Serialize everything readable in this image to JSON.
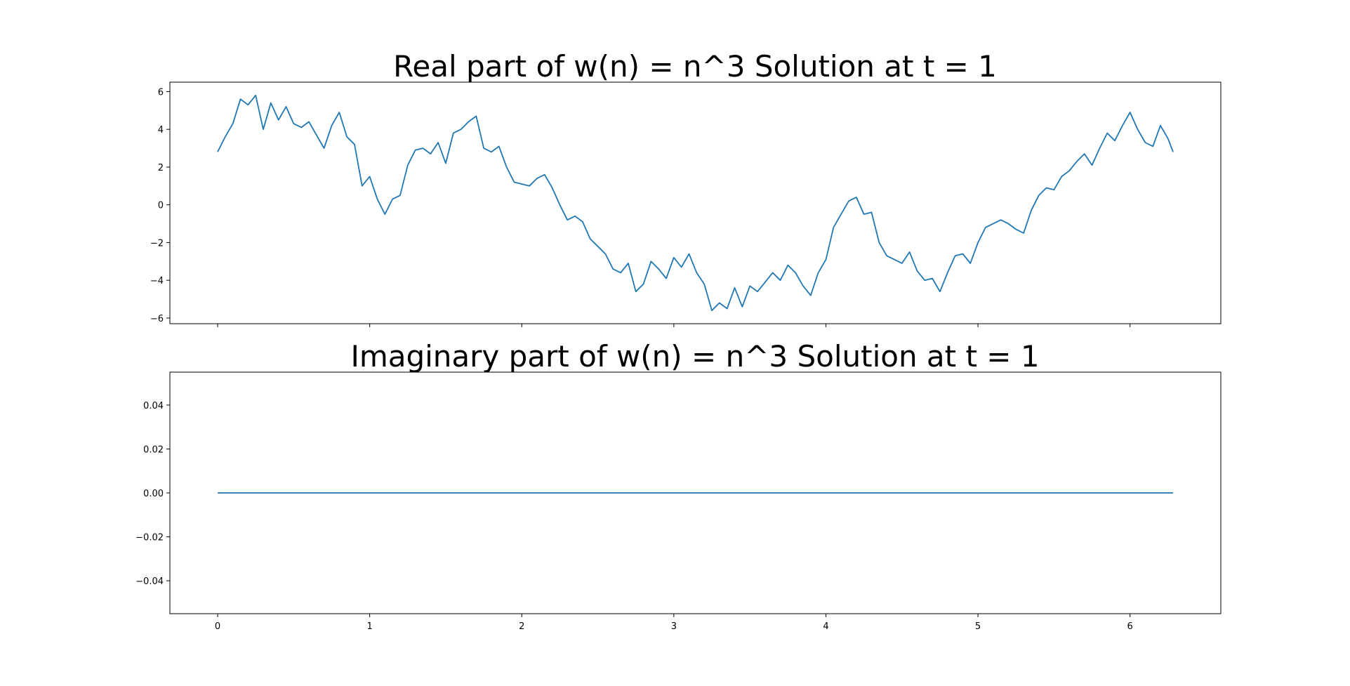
{
  "chart_data": [
    {
      "type": "line",
      "title": "Real part of w(n) = n^3 Solution at t = 1",
      "xlabel": "",
      "ylabel": "",
      "xlim": [
        -0.314,
        6.597
      ],
      "ylim": [
        -6.3,
        6.5
      ],
      "xticks": [
        0,
        1,
        2,
        3,
        4,
        5,
        6
      ],
      "xtick_labels_visible": false,
      "yticks": [
        -6,
        -4,
        -2,
        0,
        2,
        4,
        6
      ],
      "ytick_labels": [
        "−6",
        "−4",
        "−2",
        "0",
        "2",
        "4",
        "6"
      ],
      "grid": false,
      "color": "#1f77b4",
      "series": [
        {
          "x": [
            0,
            0.05,
            0.1,
            0.15,
            0.2,
            0.25,
            0.3,
            0.35,
            0.4,
            0.45,
            0.5,
            0.55,
            0.6,
            0.65,
            0.7,
            0.75,
            0.8,
            0.85,
            0.9,
            0.95,
            1.0,
            1.05,
            1.1,
            1.15,
            1.2,
            1.25,
            1.3,
            1.35,
            1.4,
            1.45,
            1.5,
            1.55,
            1.6,
            1.65,
            1.7,
            1.75,
            1.8,
            1.85,
            1.9,
            1.95,
            2.0,
            2.05,
            2.1,
            2.15,
            2.2,
            2.25,
            2.3,
            2.35,
            2.4,
            2.45,
            2.5,
            2.55,
            2.6,
            2.65,
            2.7,
            2.75,
            2.8,
            2.85,
            2.9,
            2.95,
            3.0,
            3.05,
            3.1,
            3.15,
            3.2,
            3.25,
            3.3,
            3.35,
            3.4,
            3.45,
            3.5,
            3.55,
            3.6,
            3.65,
            3.7,
            3.75,
            3.8,
            3.85,
            3.9,
            3.95,
            4.0,
            4.05,
            4.1,
            4.15,
            4.2,
            4.25,
            4.3,
            4.35,
            4.4,
            4.45,
            4.5,
            4.55,
            4.6,
            4.65,
            4.7,
            4.75,
            4.8,
            4.85,
            4.9,
            4.95,
            5.0,
            5.05,
            5.1,
            5.15,
            5.2,
            5.25,
            5.3,
            5.35,
            5.4,
            5.45,
            5.5,
            5.55,
            5.6,
            5.65,
            5.7,
            5.75,
            5.8,
            5.85,
            5.9,
            5.95,
            6.0,
            6.05,
            6.1,
            6.15,
            6.2,
            6.25,
            6.283
          ],
          "y": [
            2.8,
            3.6,
            4.3,
            5.6,
            5.3,
            5.8,
            4.0,
            5.4,
            4.5,
            5.2,
            4.3,
            4.1,
            4.4,
            3.7,
            3.0,
            4.2,
            4.9,
            3.6,
            3.2,
            1.0,
            1.5,
            0.3,
            -0.5,
            0.3,
            0.5,
            2.1,
            2.9,
            3.0,
            2.7,
            3.3,
            2.2,
            3.8,
            4.0,
            4.4,
            4.7,
            3.0,
            2.8,
            3.1,
            2.0,
            1.2,
            1.1,
            1.0,
            1.4,
            1.6,
            0.9,
            0.0,
            -0.8,
            -0.6,
            -0.9,
            -1.8,
            -2.2,
            -2.6,
            -3.4,
            -3.6,
            -3.1,
            -4.6,
            -4.2,
            -3.0,
            -3.4,
            -3.9,
            -2.8,
            -3.3,
            -2.6,
            -3.6,
            -4.2,
            -5.6,
            -5.2,
            -5.5,
            -4.4,
            -5.4,
            -4.3,
            -4.6,
            -4.1,
            -3.6,
            -4.0,
            -3.2,
            -3.6,
            -4.3,
            -4.8,
            -3.6,
            -2.9,
            -1.2,
            -0.5,
            0.2,
            0.4,
            -0.5,
            -0.4,
            -2.0,
            -2.7,
            -2.9,
            -3.1,
            -2.5,
            -3.5,
            -4.0,
            -3.9,
            -4.6,
            -3.6,
            -2.7,
            -2.6,
            -3.1,
            -2.0,
            -1.2,
            -1.0,
            -0.8,
            -1.0,
            -1.3,
            -1.5,
            -0.3,
            0.5,
            0.9,
            0.8,
            1.5,
            1.8,
            2.3,
            2.7,
            2.1,
            3.0,
            3.8,
            3.4,
            4.2,
            4.9,
            4.0,
            3.3,
            3.1,
            4.2,
            3.5,
            2.8
          ]
        }
      ]
    },
    {
      "type": "line",
      "title": "Imaginary part of w(n) = n^3 Solution at t = 1",
      "xlabel": "",
      "ylabel": "",
      "xlim": [
        -0.314,
        6.597
      ],
      "ylim": [
        -0.055,
        0.055
      ],
      "xticks": [
        0,
        1,
        2,
        3,
        4,
        5,
        6
      ],
      "xtick_labels": [
        "0",
        "1",
        "2",
        "3",
        "4",
        "5",
        "6"
      ],
      "yticks": [
        -0.04,
        -0.02,
        0.0,
        0.02,
        0.04
      ],
      "ytick_labels": [
        "−0.04",
        "−0.02",
        "0.00",
        "0.02",
        "0.04"
      ],
      "grid": false,
      "color": "#1f77b4",
      "series": [
        {
          "x": [
            0,
            6.283
          ],
          "y": [
            0,
            0
          ]
        }
      ]
    }
  ]
}
